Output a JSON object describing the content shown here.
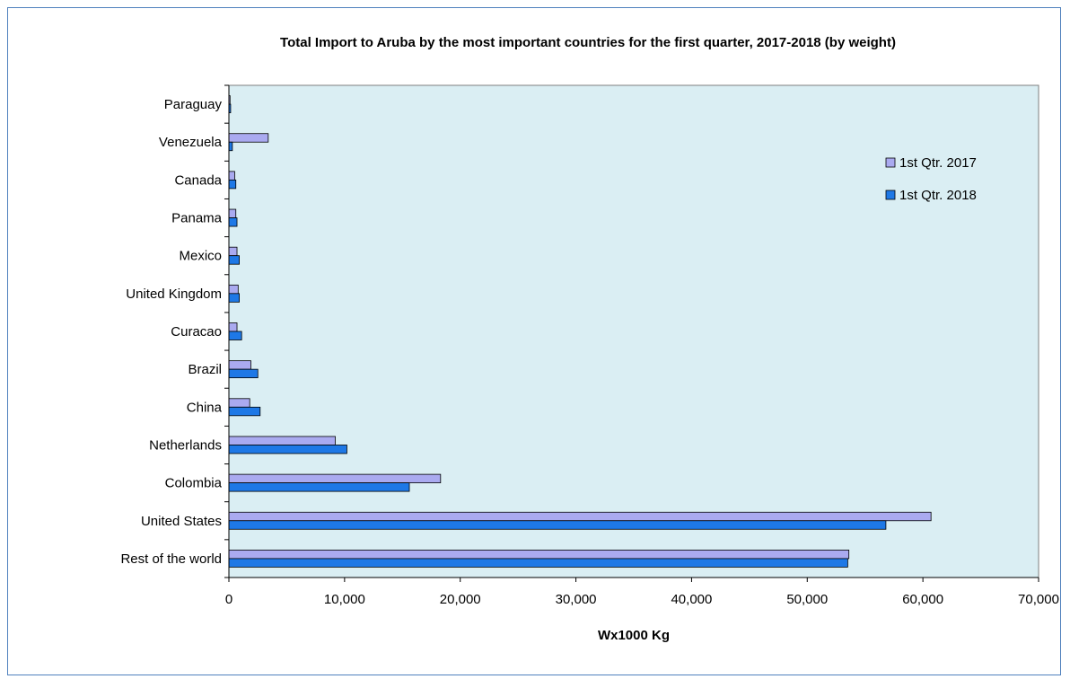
{
  "chart_data": {
    "type": "bar",
    "orientation": "horizontal",
    "title": "Total Import to Aruba  by the most important countries for the first quarter,  2017-2018 (by weight)",
    "xlabel": "Wx1000 Kg",
    "ylabel": "",
    "xlim": [
      0,
      70000
    ],
    "x_ticks": [
      0,
      10000,
      20000,
      30000,
      40000,
      50000,
      60000,
      70000
    ],
    "x_tick_labels": [
      "0",
      "10,000",
      "20,000",
      "30,000",
      "40,000",
      "50,000",
      "60,000",
      "70,000"
    ],
    "grid": false,
    "legend_position": "top-right",
    "categories": [
      "Paraguay",
      "Venezuela",
      "Canada",
      "Panama",
      "Mexico",
      "United Kingdom",
      "Curacao",
      "Brazil",
      "China",
      "Netherlands",
      "Colombia",
      "United States",
      "Rest of the world"
    ],
    "series": [
      {
        "name": "1st Qtr. 2017",
        "color": "#aaaaf0",
        "values": [
          100,
          3400,
          500,
          600,
          700,
          800,
          700,
          1900,
          1800,
          9200,
          18300,
          60700,
          53600
        ]
      },
      {
        "name": "1st Qtr. 2018",
        "color": "#1e78e6",
        "values": [
          150,
          300,
          600,
          700,
          900,
          900,
          1100,
          2500,
          2700,
          10200,
          15600,
          56800,
          53500
        ]
      }
    ],
    "plot_background": "#daeef3"
  }
}
